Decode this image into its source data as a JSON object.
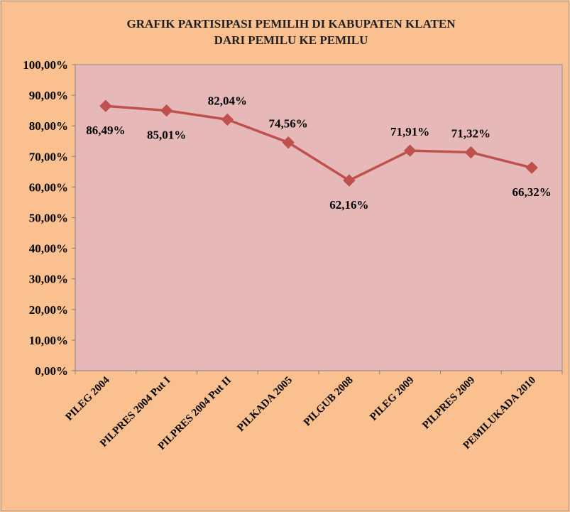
{
  "chart_data": {
    "type": "line",
    "title": "GRAFIK PARTISIPASI PEMILIH DI KABUPATEN KLATEN",
    "subtitle": "DARI PEMILU KE PEMILU",
    "xlabel": "",
    "ylabel": "",
    "ylim": [
      0,
      100
    ],
    "y_ticks": [
      "0,00%",
      "10,00%",
      "20,00%",
      "30,00%",
      "40,00%",
      "50,00%",
      "60,00%",
      "70,00%",
      "80,00%",
      "90,00%",
      "100,00%"
    ],
    "categories": [
      "PILEG 2004",
      "PILPRES 2004 Put I",
      "PILPRES 2004 Put II",
      "PILKADA 2005",
      "PILGUB 2008",
      "PILEG 2009",
      "PILPRES 2009",
      "PEMILUKADA 2010"
    ],
    "series": [
      {
        "values": [
          86.49,
          85.01,
          82.04,
          74.56,
          62.16,
          71.91,
          71.32,
          66.32
        ],
        "labels": [
          "86,49%",
          "85,01%",
          "82,04%",
          "74,56%",
          "62,16%",
          "71,91%",
          "71,32%",
          "66,32%"
        ],
        "label_positions": [
          "below",
          "below",
          "above",
          "above",
          "below",
          "above",
          "above",
          "below"
        ],
        "color": "#c0504d"
      }
    ],
    "grid": false,
    "legend": "none",
    "plot_background": "#e6b9b8",
    "background": "#fac090"
  }
}
